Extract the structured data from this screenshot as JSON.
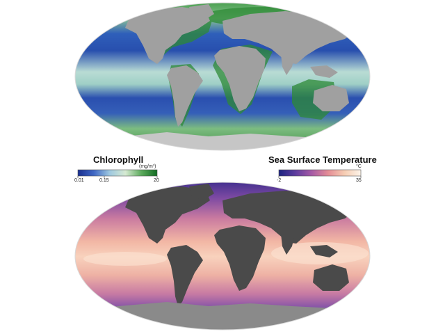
{
  "colors": {
    "land_top": "#a0a0a0",
    "ice_top": "#c6c6c6",
    "land_bottom": "#4a4a4a",
    "ice_bottom": "#8a8a8a"
  },
  "chlorophyll": {
    "title": "Chlorophyll",
    "unit": "(mg/m³)",
    "scale": "log",
    "ticks": [
      "0.01",
      "0.15",
      "20"
    ],
    "colors": [
      "#1a2f8f",
      "#3f67c4",
      "#9ec8e0",
      "#d6ead2",
      "#5dab5d",
      "#116b22"
    ]
  },
  "sst": {
    "title": "Sea Surface Temperature",
    "unit": "°C",
    "ticks": [
      "-2",
      "35"
    ],
    "colors": [
      "#1c2380",
      "#5d3c9e",
      "#a65aa6",
      "#e48d96",
      "#f6cdb3",
      "#fdf4ea"
    ]
  }
}
